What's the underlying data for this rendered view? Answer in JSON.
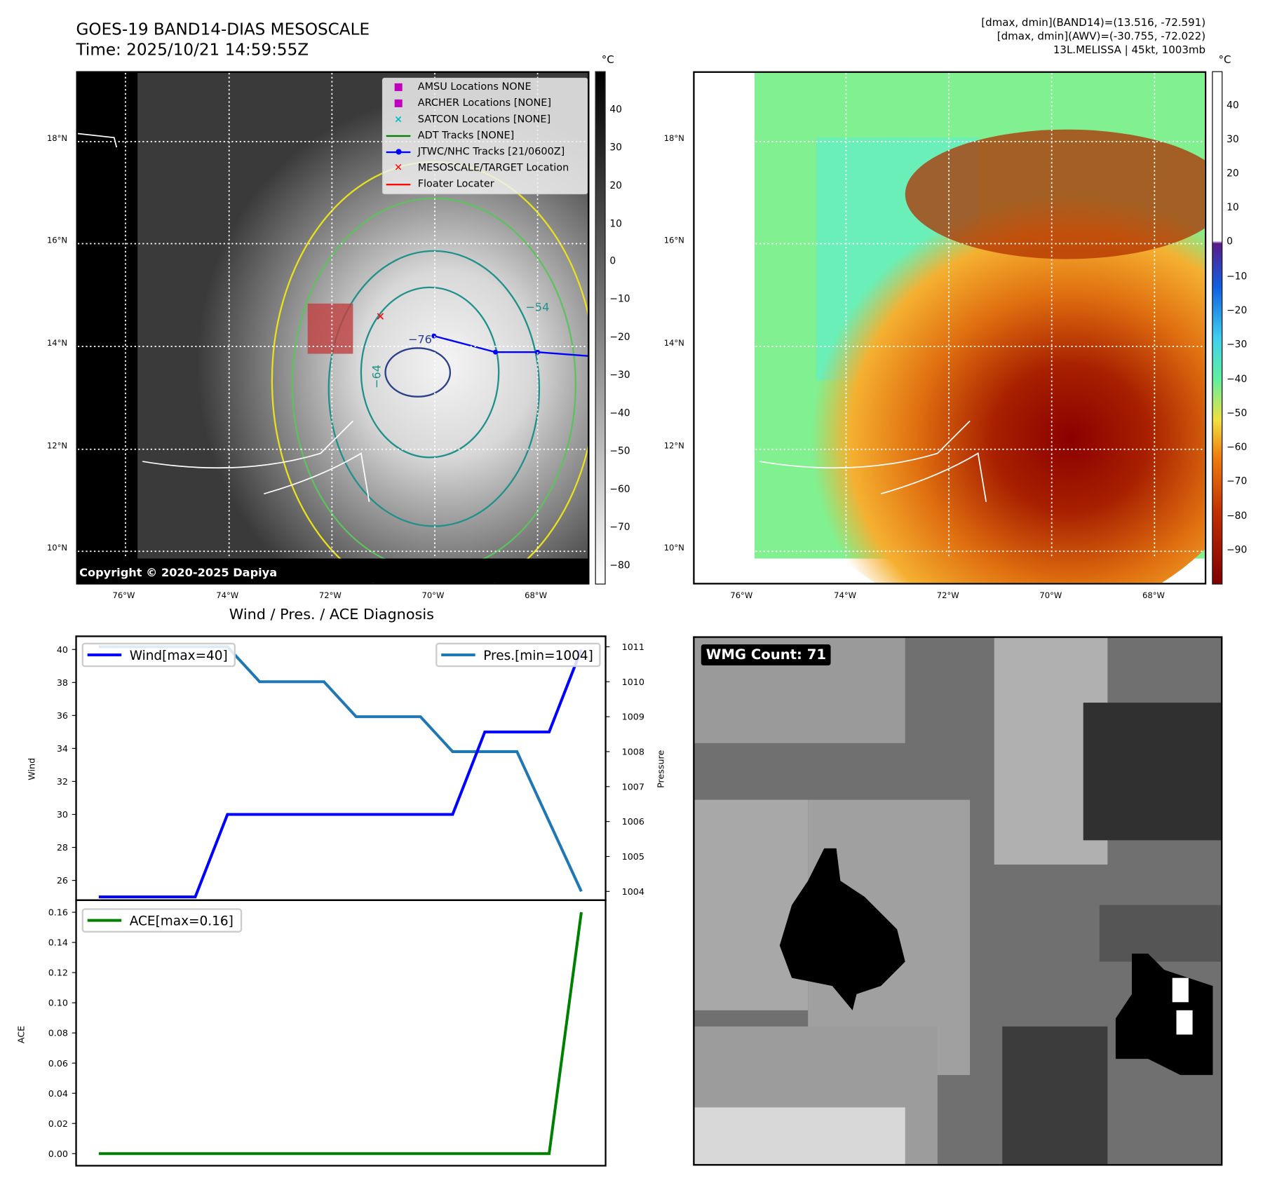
{
  "header": {
    "title_line1": "GOES-19 BAND14-DIAS MESOSCALE",
    "title_line2": "Time: 2025/10/21 14:59:55Z",
    "info_line1": "[dmax, dmin](BAND14)=(13.516, -72.591)",
    "info_line2": "[dmax, dmin](AWV)=(-30.755, -72.022)",
    "info_line3": "13L.MELISSA | 45kt, 1003mb"
  },
  "map_left": {
    "unit": "°C",
    "colorbar_ticks": [
      "40",
      "30",
      "20",
      "10",
      "0",
      "−10",
      "−20",
      "−30",
      "−40",
      "−50",
      "−60",
      "−70",
      "−80"
    ],
    "lat_ticks": [
      "18°N",
      "16°N",
      "14°N",
      "12°N",
      "10°N"
    ],
    "lon_ticks": [
      "76°W",
      "74°W",
      "72°W",
      "70°W",
      "68°W"
    ],
    "contour_labels": [
      "−76",
      "−64",
      "−54"
    ],
    "copyright": "Copyright © 2020-2025 Dapiya",
    "legend": [
      {
        "label": "AMSU Locations NONE",
        "icon": "square-marker",
        "color": "#bf00bf"
      },
      {
        "label": "ARCHER Locations [NONE]",
        "icon": "square-marker",
        "color": "#bf00bf"
      },
      {
        "label": "SATCON Locations [NONE]",
        "icon": "x-marker",
        "color": "#00bfbf"
      },
      {
        "label": "ADT Tracks [NONE]",
        "icon": "line",
        "color": "#008000"
      },
      {
        "label": "JTWC/NHC Tracks [21/0600Z]",
        "icon": "line-dot",
        "color": "#0000ff"
      },
      {
        "label": "MESOSCALE/TARGET Location",
        "icon": "x-marker",
        "color": "#ff0000"
      },
      {
        "label": "Floater Locater",
        "icon": "line",
        "color": "#ff0000"
      }
    ]
  },
  "map_right": {
    "unit": "°C",
    "colorbar_ticks": [
      "40",
      "30",
      "20",
      "10",
      "0",
      "−10",
      "−20",
      "−30",
      "−40",
      "−50",
      "−60",
      "−70",
      "−80",
      "−90"
    ],
    "lat_ticks": [
      "18°N",
      "16°N",
      "14°N",
      "12°N",
      "10°N"
    ],
    "lon_ticks": [
      "76°W",
      "74°W",
      "72°W",
      "70°W",
      "68°W"
    ]
  },
  "wmg": {
    "label": "WMG Count: 71"
  },
  "chart_data": [
    {
      "type": "line",
      "title": "Wind / Pres. / ACE Diagnosis",
      "x": [
        0,
        1,
        2,
        3,
        4,
        5,
        6,
        7,
        8,
        9,
        10,
        11,
        12,
        13,
        14,
        15
      ],
      "ylabel": "Wind",
      "y2label": "Pressure",
      "ylim": [
        24.8,
        40.8
      ],
      "y2lim": [
        1003.75,
        1011.3
      ],
      "yticks": [
        "26",
        "28",
        "30",
        "32",
        "34",
        "36",
        "38",
        "40"
      ],
      "y2ticks": [
        "1004",
        "1005",
        "1006",
        "1007",
        "1008",
        "1009",
        "1010",
        "1011"
      ],
      "series": [
        {
          "name": "Wind[max=40]",
          "axis": "left",
          "color": "#0000ff",
          "values": [
            25,
            25,
            25,
            25,
            30,
            30,
            30,
            30,
            30,
            30,
            30,
            30,
            35,
            35,
            35,
            40
          ]
        },
        {
          "name": "Pres.[min=1004]",
          "axis": "right",
          "color": "#1f77b4",
          "values": [
            1011,
            1011,
            1011,
            1011,
            1011,
            1010,
            1010,
            1010,
            1009,
            1009,
            1009,
            1008,
            1008,
            1008,
            1006,
            1004
          ]
        }
      ]
    },
    {
      "type": "line",
      "ylabel": "ACE",
      "ylim": [
        -0.008,
        0.168
      ],
      "yticks": [
        "0.00",
        "0.02",
        "0.04",
        "0.06",
        "0.08",
        "0.10",
        "0.12",
        "0.14",
        "0.16"
      ],
      "x": [
        0,
        1,
        2,
        3,
        4,
        5,
        6,
        7,
        8,
        9,
        10,
        11,
        12,
        13,
        14,
        15
      ],
      "series": [
        {
          "name": "ACE[max=0.16]",
          "color": "#008000",
          "values": [
            0,
            0,
            0,
            0,
            0,
            0,
            0,
            0,
            0,
            0,
            0,
            0,
            0,
            0,
            0,
            0.16
          ]
        }
      ]
    }
  ]
}
